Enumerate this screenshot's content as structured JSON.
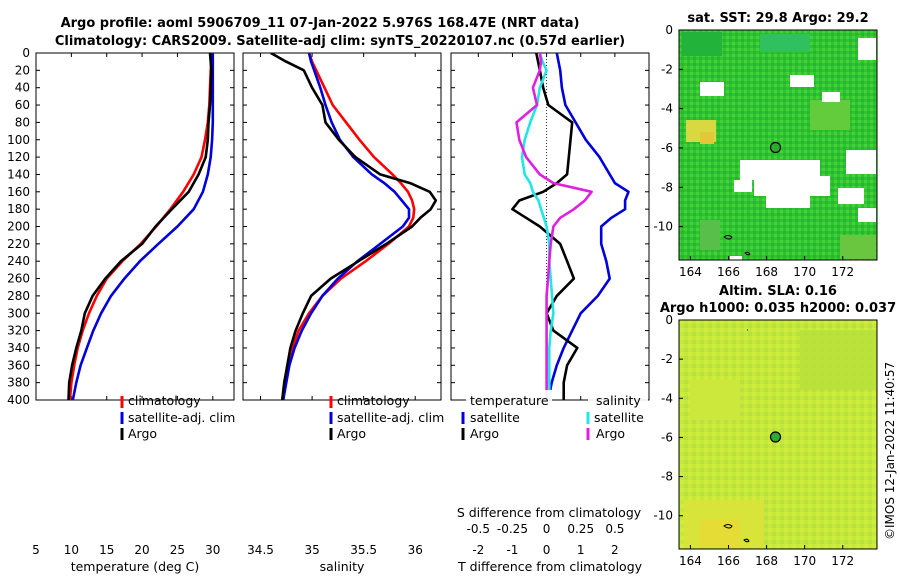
{
  "header": {
    "title_line1": "Argo profile: aoml 5906709_11 07-Jan-2022 5.976S 168.47E (NRT data)",
    "title_line2": "Climatology: CARS2009. Satellite-adj clim: synTS_20220107.nc (0.57d earlier)"
  },
  "colors": {
    "climatology": "#ff0000",
    "satellite": "#0000dd",
    "argo": "#000000",
    "temperature_diff": "#22e5e5",
    "salinity_diff": "#e020e0",
    "sst_map_base": "#2ec42e",
    "sla_map_base": "#c0e83a"
  },
  "depth_axis": {
    "min": 0,
    "max": 400,
    "ticks": [
      0,
      20,
      40,
      60,
      80,
      100,
      120,
      140,
      160,
      180,
      200,
      220,
      240,
      260,
      280,
      300,
      320,
      340,
      360,
      380,
      400
    ]
  },
  "chart_data": [
    {
      "id": "temperature",
      "type": "line",
      "xlabel": "temperature (deg C)",
      "xlim": [
        5,
        33
      ],
      "xticks": [
        5,
        10,
        15,
        20,
        25,
        30
      ],
      "depth": [
        0,
        10,
        20,
        40,
        60,
        80,
        100,
        120,
        140,
        160,
        180,
        200,
        220,
        240,
        260,
        280,
        300,
        320,
        340,
        360,
        380,
        400
      ],
      "series": [
        {
          "name": "climatology",
          "color_key": "climatology",
          "values": [
            29.9,
            29.8,
            29.7,
            29.6,
            29.5,
            29.3,
            28.9,
            28.4,
            27.3,
            25.8,
            24.0,
            22.0,
            19.8,
            17.2,
            15.0,
            13.6,
            12.5,
            11.6,
            10.9,
            10.4,
            10.0,
            9.8
          ]
        },
        {
          "name": "satellite-adj. clim",
          "color_key": "satellite",
          "values": [
            30.0,
            30.0,
            30.0,
            30.0,
            30.0,
            30.0,
            29.9,
            29.7,
            29.3,
            28.6,
            27.3,
            25.0,
            22.3,
            19.7,
            17.5,
            15.6,
            14.2,
            13.1,
            12.2,
            11.3,
            10.7,
            10.2
          ]
        },
        {
          "name": "Argo",
          "color_key": "argo",
          "values": [
            29.6,
            29.7,
            29.8,
            29.7,
            29.6,
            29.4,
            29.3,
            29.0,
            28.0,
            26.6,
            24.2,
            21.9,
            20.0,
            17.0,
            14.8,
            13.0,
            11.9,
            11.4,
            10.7,
            10.1,
            9.7,
            9.6
          ]
        }
      ]
    },
    {
      "id": "salinity",
      "type": "line",
      "xlabel": "salinity",
      "xlim": [
        34.33,
        36.25
      ],
      "xticks": [
        34.5,
        35,
        35.5,
        36
      ],
      "xticklabels": [
        "34.5",
        "35",
        "35.5",
        "36"
      ],
      "depth": [
        0,
        10,
        20,
        40,
        60,
        80,
        100,
        120,
        140,
        150,
        160,
        170,
        180,
        190,
        200,
        220,
        240,
        260,
        280,
        300,
        320,
        340,
        360,
        380,
        400
      ],
      "series": [
        {
          "name": "climatology",
          "color_key": "climatology",
          "values": [
            34.97,
            35.0,
            35.04,
            35.12,
            35.2,
            35.33,
            35.46,
            35.6,
            35.78,
            35.86,
            35.93,
            35.97,
            35.99,
            35.98,
            35.94,
            35.74,
            35.52,
            35.28,
            35.1,
            34.97,
            34.87,
            34.81,
            34.77,
            34.74,
            34.72
          ]
        },
        {
          "name": "satellite-adj. clim",
          "color_key": "satellite",
          "values": [
            34.97,
            34.99,
            35.02,
            35.08,
            35.13,
            35.19,
            35.27,
            35.4,
            35.58,
            35.7,
            35.8,
            35.87,
            35.94,
            35.94,
            35.88,
            35.66,
            35.44,
            35.25,
            35.1,
            34.99,
            34.9,
            34.83,
            34.78,
            34.75,
            34.72
          ]
        },
        {
          "name": "Argo",
          "color_key": "argo",
          "values": [
            34.6,
            34.75,
            34.92,
            35.0,
            35.1,
            35.13,
            35.26,
            35.42,
            35.66,
            35.95,
            36.14,
            36.2,
            36.15,
            36.05,
            35.97,
            35.72,
            35.45,
            35.18,
            34.99,
            34.91,
            34.84,
            34.79,
            34.76,
            34.73,
            34.71
          ]
        }
      ]
    },
    {
      "id": "difference",
      "type": "line",
      "xlabel": "T difference from climatology",
      "xlim": [
        -2.8,
        3.0
      ],
      "xticks": [
        -2,
        -1,
        0,
        1,
        2
      ],
      "top_label": "S difference from climatology",
      "top_ticks": [
        -0.5,
        -0.25,
        0,
        0.25,
        0.5
      ],
      "top_ticklabels": [
        "-0.5",
        "-0.25",
        "0",
        "0.25",
        "0.5"
      ],
      "s_scale_factor": 4,
      "depth": [
        0,
        10,
        20,
        40,
        60,
        80,
        100,
        120,
        140,
        150,
        160,
        170,
        180,
        190,
        200,
        220,
        240,
        260,
        280,
        300,
        320,
        340,
        360,
        380,
        400
      ],
      "series": [
        {
          "name": "temperature satellite",
          "color_key": "satellite",
          "quantity": "T",
          "values": [
            0.3,
            0.35,
            0.4,
            0.45,
            0.55,
            0.85,
            1.15,
            1.55,
            1.85,
            2.0,
            2.4,
            2.3,
            2.3,
            1.9,
            1.6,
            1.6,
            1.75,
            1.85,
            1.5,
            1.0,
            0.75,
            0.5,
            0.3,
            0.15,
            0.05
          ]
        },
        {
          "name": "temperature Argo",
          "color_key": "argo",
          "quantity": "T",
          "values": [
            -0.3,
            -0.25,
            -0.2,
            -0.1,
            0.05,
            0.75,
            0.7,
            0.65,
            0.6,
            0.3,
            -0.1,
            -0.8,
            -1.0,
            -0.6,
            -0.2,
            0.4,
            0.6,
            0.8,
            0.3,
            0.0,
            0.2,
            0.9,
            0.6,
            0.5,
            0.5
          ]
        },
        {
          "name": "salinity satellite",
          "color_key": "temperature_diff",
          "quantity": "S",
          "values": [
            -0.05,
            -0.03,
            0.0,
            -0.05,
            -0.07,
            -0.12,
            -0.16,
            -0.18,
            -0.16,
            -0.12,
            -0.1,
            -0.06,
            -0.04,
            -0.02,
            0.0,
            0.02,
            0.02,
            0.03,
            0.04,
            0.05,
            0.03,
            0.02,
            0.02,
            0.02,
            0.02
          ]
        },
        {
          "name": "salinity Argo",
          "color_key": "salinity_diff",
          "quantity": "S",
          "values": [
            -0.05,
            -0.04,
            -0.05,
            -0.1,
            -0.07,
            -0.22,
            -0.2,
            -0.15,
            -0.05,
            0.05,
            0.33,
            0.28,
            0.2,
            0.1,
            0.05,
            0.03,
            0.02,
            0.01,
            0.0,
            0.0,
            0.0,
            0.0,
            0.0,
            0.0,
            0.0
          ]
        }
      ]
    }
  ],
  "legends": {
    "temperature": [
      "climatology",
      "satellite-adj. clim",
      "Argo"
    ],
    "salinity": [
      "climatology",
      "satellite-adj. clim",
      "Argo"
    ],
    "difference_left_title": "temperature",
    "difference_left": [
      "satellite",
      "Argo"
    ],
    "difference_right_title": "salinity",
    "difference_right": [
      "satellite",
      "Argo"
    ]
  },
  "maps": {
    "sst": {
      "title": "sat. SST: 29.8 Argo: 29.2",
      "xlim": [
        163.4,
        173.8
      ],
      "ylim": [
        -11.7,
        0
      ],
      "xticks": [
        164,
        166,
        168,
        170,
        172
      ],
      "yticks": [
        0,
        -2,
        -4,
        -6,
        -8,
        -10
      ],
      "argo_lon": 168.47,
      "argo_lat": -5.976
    },
    "sla": {
      "title_line1": "Altim. SLA: 0.16",
      "title_line2": "Argo h1000: 0.035 h2000: 0.037",
      "xlim": [
        163.4,
        173.8
      ],
      "ylim": [
        -11.7,
        0
      ],
      "xticks": [
        164,
        166,
        168,
        170,
        172
      ],
      "yticks": [
        0,
        -2,
        -4,
        -6,
        -8,
        -10
      ],
      "argo_lon": 168.47,
      "argo_lat": -5.976
    }
  },
  "footer": {
    "stamp": "©IMOS 12-Jan-2022 11:40:57"
  }
}
